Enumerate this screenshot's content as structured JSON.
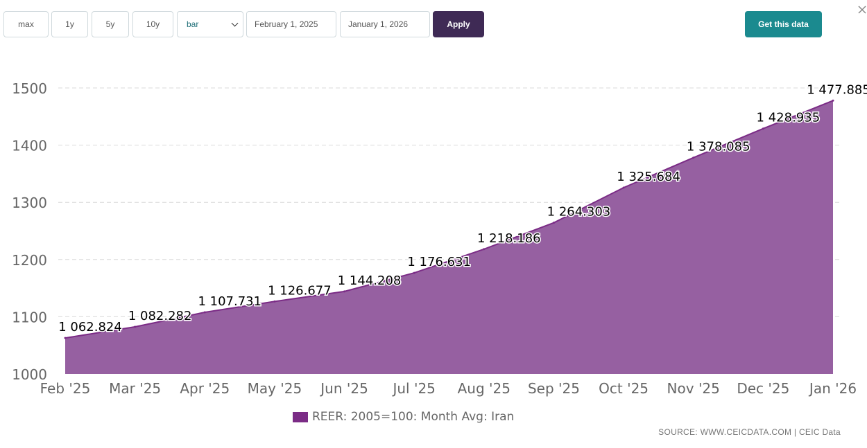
{
  "toolbar": {
    "range_buttons": [
      "max",
      "1y",
      "5y",
      "10y"
    ],
    "chart_type_select": "bar",
    "start_date": "February 1, 2025",
    "end_date": "January 1, 2026",
    "apply_label": "Apply",
    "get_data_label": "Get this data"
  },
  "colors": {
    "area_fill": "#9660a1",
    "area_line": "#7b2c86",
    "apply_bg": "#3f2a55",
    "get_data_bg": "#1b8a8f"
  },
  "source_text": "SOURCE: WWW.CEICDATA.COM | CEIC Data",
  "chart_data": {
    "type": "area",
    "categories": [
      "Feb '25",
      "Mar '25",
      "Apr '25",
      "May '25",
      "Jun '25",
      "Jul '25",
      "Aug '25",
      "Sep '25",
      "Oct '25",
      "Nov '25",
      "Dec '25",
      "Jan '26"
    ],
    "series": [
      {
        "name": "REER: 2005=100: Month Avg: Iran",
        "values": [
          1062.824,
          1082.282,
          1107.731,
          1126.677,
          1144.208,
          1176.631,
          1218.186,
          1264.303,
          1325.684,
          1378.085,
          1428.935,
          1477.885
        ],
        "labels": [
          "1 062.824",
          "1 082.282",
          "1 107.731",
          "1 126.677",
          "1 144.208",
          "1 176.631",
          "1 218.186",
          "1 264.303",
          "1 325.684",
          "1 378.085",
          "1 428.935",
          "1 477.885"
        ]
      }
    ],
    "ylim": [
      1000,
      1500
    ],
    "yticks": [
      "1000",
      "1100",
      "1200",
      "1300",
      "1400",
      "1500"
    ],
    "grid": true,
    "legend_position": "bottom"
  }
}
